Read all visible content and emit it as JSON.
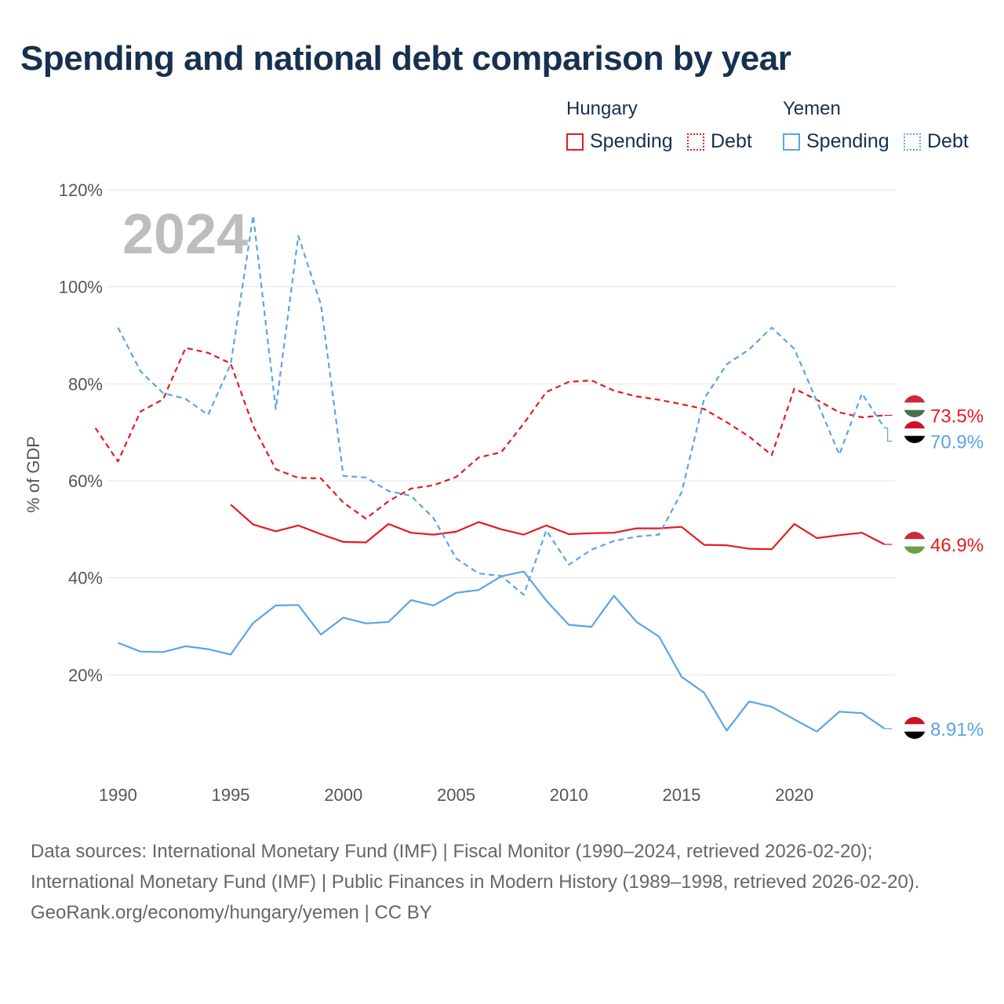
{
  "title": "Spending and national debt comparison by year",
  "legend": {
    "groups": [
      {
        "name": "Hungary",
        "color": "#e8191e",
        "items": [
          "Spending",
          "Debt"
        ]
      },
      {
        "name": "Yemen",
        "color": "#5ba4e5",
        "items": [
          "Spending",
          "Debt"
        ]
      }
    ]
  },
  "footer": {
    "sources": "Data sources: International Monetary Fund (IMF) | Fiscal Monitor (1990–2024, retrieved 2026-02-20); International Monetary Fund (IMF) | Public Finances in Modern History (1989–1998, retrieved 2026-02-20).",
    "credit": "GeoRank.org/economy/hungary/yemen | CC BY"
  },
  "chart_data": {
    "type": "line",
    "title": "Spending and national debt comparison by year",
    "year_watermark": "2024",
    "xlabel": "",
    "ylabel": "% of GDP",
    "xlim": [
      1989.5,
      2024.5
    ],
    "ylim": [
      0,
      120
    ],
    "x_ticks": [
      1990,
      1995,
      2000,
      2005,
      2010,
      2015,
      2020
    ],
    "y_ticks": [
      20,
      40,
      60,
      80,
      100,
      120
    ],
    "y_tick_labels": [
      "20%",
      "40%",
      "60%",
      "80%",
      "100%",
      "120%"
    ],
    "grid": true,
    "legend_position": "top-right",
    "series": [
      {
        "name": "Hungary Spending",
        "country": "Hungary",
        "metric": "Spending",
        "color": "#e8191e",
        "dashed": false,
        "end_label": "46.9%",
        "points": [
          [
            1995,
            55.1
          ],
          [
            1996,
            51.0
          ],
          [
            1997,
            49.6
          ],
          [
            1998,
            50.8
          ],
          [
            1999,
            49.0
          ],
          [
            2000,
            47.4
          ],
          [
            2001,
            47.3
          ],
          [
            2002,
            51.1
          ],
          [
            2003,
            49.3
          ],
          [
            2004,
            48.9
          ],
          [
            2005,
            49.5
          ],
          [
            2006,
            51.5
          ],
          [
            2007,
            50.0
          ],
          [
            2008,
            48.9
          ],
          [
            2009,
            50.8
          ],
          [
            2010,
            49.0
          ],
          [
            2011,
            49.2
          ],
          [
            2012,
            49.3
          ],
          [
            2013,
            50.2
          ],
          [
            2014,
            50.2
          ],
          [
            2015,
            50.5
          ],
          [
            2016,
            46.8
          ],
          [
            2017,
            46.7
          ],
          [
            2018,
            46.0
          ],
          [
            2019,
            45.9
          ],
          [
            2020,
            51.1
          ],
          [
            2021,
            48.2
          ],
          [
            2022,
            48.8
          ],
          [
            2023,
            49.3
          ],
          [
            2024,
            46.9
          ]
        ]
      },
      {
        "name": "Hungary Debt",
        "country": "Hungary",
        "metric": "Debt",
        "color": "#e8191e",
        "dashed": true,
        "end_label": "73.5%",
        "points": [
          [
            1989,
            70.9
          ],
          [
            1990,
            64.0
          ],
          [
            1991,
            74.3
          ],
          [
            1992,
            76.8
          ],
          [
            1993,
            87.4
          ],
          [
            1994,
            86.4
          ],
          [
            1995,
            84.2
          ],
          [
            1996,
            71.3
          ],
          [
            1997,
            62.4
          ],
          [
            1998,
            60.6
          ],
          [
            1999,
            60.5
          ],
          [
            2000,
            55.5
          ],
          [
            2001,
            52.2
          ],
          [
            2002,
            55.8
          ],
          [
            2003,
            58.4
          ],
          [
            2004,
            59.1
          ],
          [
            2005,
            60.8
          ],
          [
            2006,
            64.8
          ],
          [
            2007,
            65.9
          ],
          [
            2008,
            71.8
          ],
          [
            2009,
            78.3
          ],
          [
            2010,
            80.4
          ],
          [
            2011,
            80.7
          ],
          [
            2012,
            78.6
          ],
          [
            2013,
            77.4
          ],
          [
            2014,
            76.7
          ],
          [
            2015,
            75.8
          ],
          [
            2016,
            74.8
          ],
          [
            2017,
            72.1
          ],
          [
            2018,
            69.1
          ],
          [
            2019,
            65.3
          ],
          [
            2020,
            79.0
          ],
          [
            2021,
            76.7
          ],
          [
            2022,
            74.1
          ],
          [
            2023,
            73.1
          ],
          [
            2024,
            73.5
          ]
        ]
      },
      {
        "name": "Yemen Spending",
        "country": "Yemen",
        "metric": "Spending",
        "color": "#5ba4e5",
        "dashed": false,
        "end_label": "8.91%",
        "points": [
          [
            1990,
            26.6
          ],
          [
            1991,
            24.8
          ],
          [
            1992,
            24.7
          ],
          [
            1993,
            25.9
          ],
          [
            1994,
            25.3
          ],
          [
            1995,
            24.2
          ],
          [
            1996,
            30.7
          ],
          [
            1997,
            34.3
          ],
          [
            1998,
            34.4
          ],
          [
            1999,
            28.3
          ],
          [
            2000,
            31.8
          ],
          [
            2001,
            30.6
          ],
          [
            2002,
            30.9
          ],
          [
            2003,
            35.4
          ],
          [
            2004,
            34.3
          ],
          [
            2005,
            36.9
          ],
          [
            2006,
            37.5
          ],
          [
            2007,
            40.3
          ],
          [
            2008,
            41.3
          ],
          [
            2009,
            35.3
          ],
          [
            2010,
            30.3
          ],
          [
            2011,
            29.9
          ],
          [
            2012,
            36.3
          ],
          [
            2013,
            30.9
          ],
          [
            2014,
            27.9
          ],
          [
            2015,
            19.6
          ],
          [
            2016,
            16.3
          ],
          [
            2017,
            8.5
          ],
          [
            2018,
            14.5
          ],
          [
            2019,
            13.4
          ],
          [
            2020,
            10.8
          ],
          [
            2021,
            8.3
          ],
          [
            2022,
            12.4
          ],
          [
            2023,
            12.1
          ],
          [
            2024,
            8.91
          ]
        ]
      },
      {
        "name": "Yemen Debt",
        "country": "Yemen",
        "metric": "Debt",
        "color": "#5ba4e5",
        "dashed": true,
        "end_label": "70.9%",
        "points": [
          [
            1990,
            91.6
          ],
          [
            1991,
            82.6
          ],
          [
            1992,
            78.1
          ],
          [
            1993,
            76.9
          ],
          [
            1994,
            73.6
          ],
          [
            1995,
            84.0
          ],
          [
            1996,
            114.7
          ],
          [
            1997,
            74.8
          ],
          [
            1998,
            110.5
          ],
          [
            1999,
            96.4
          ],
          [
            2000,
            61.0
          ],
          [
            2001,
            60.7
          ],
          [
            2002,
            57.9
          ],
          [
            2003,
            56.9
          ],
          [
            2004,
            52.3
          ],
          [
            2005,
            44.0
          ],
          [
            2006,
            40.9
          ],
          [
            2007,
            40.4
          ],
          [
            2008,
            36.5
          ],
          [
            2009,
            49.8
          ],
          [
            2010,
            42.7
          ],
          [
            2011,
            45.8
          ],
          [
            2012,
            47.6
          ],
          [
            2013,
            48.5
          ],
          [
            2014,
            48.9
          ],
          [
            2015,
            57.6
          ],
          [
            2016,
            76.9
          ],
          [
            2017,
            84.0
          ],
          [
            2018,
            87.1
          ],
          [
            2019,
            91.6
          ],
          [
            2020,
            87.2
          ],
          [
            2021,
            76.4
          ],
          [
            2022,
            65.4
          ],
          [
            2023,
            78.0
          ],
          [
            2024,
            70.9
          ]
        ]
      }
    ]
  }
}
